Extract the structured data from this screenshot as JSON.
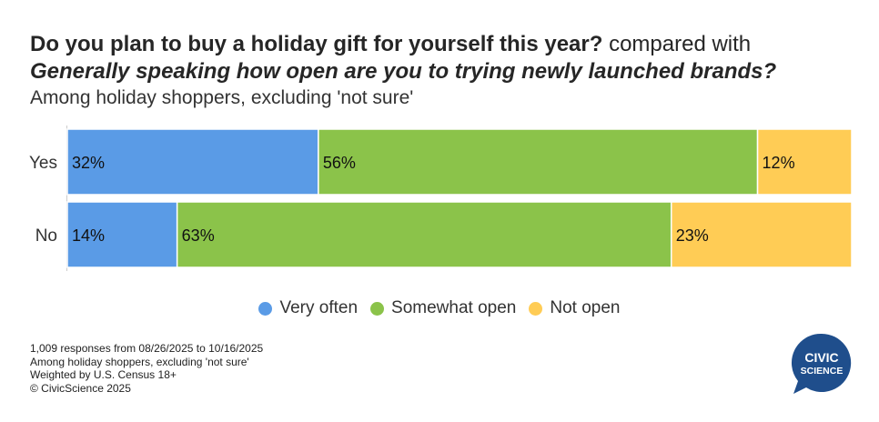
{
  "title": {
    "question1": "Do you plan to buy a holiday gift for yourself this year?",
    "connector": " compared with",
    "question2": "Generally speaking how open are you to trying newly launched brands?"
  },
  "subtitle": "Among holiday shoppers, excluding 'not sure'",
  "chart_data": {
    "type": "bar",
    "orientation": "horizontal",
    "stacked": true,
    "normalized": true,
    "categories": [
      "Yes",
      "No"
    ],
    "series": [
      {
        "name": "Very often",
        "values": [
          32,
          14
        ],
        "labels": [
          "32%",
          "14%"
        ],
        "color": "#5a9be6"
      },
      {
        "name": "Somewhat open",
        "values": [
          56,
          63
        ],
        "labels": [
          "56%",
          "63%"
        ],
        "color": "#8bc34a"
      },
      {
        "name": "Not open",
        "values": [
          12,
          23
        ],
        "labels": [
          "12%",
          "23%"
        ],
        "color": "#ffcc55"
      }
    ],
    "xlim": [
      0,
      100
    ],
    "grid": false,
    "legend_position": "bottom"
  },
  "footnotes": [
    "1,009 responses from 08/26/2025 to 10/16/2025",
    "Among holiday shoppers, excluding 'not sure'",
    "Weighted by U.S. Census 18+",
    "© CivicScience 2025"
  ],
  "logo": {
    "line1": "CIVIC",
    "line2": "SCIENCE",
    "color": "#1f4e8c"
  }
}
